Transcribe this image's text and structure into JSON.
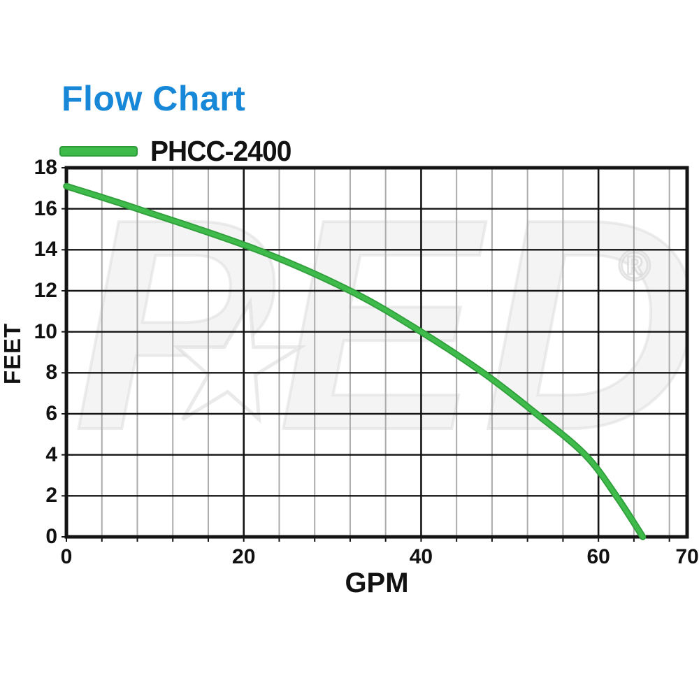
{
  "title": "Flow Chart",
  "colors": {
    "title_blue": "#1787d8",
    "curve_green": "#3fbb4b",
    "curve_green_dark": "#2f9e3a",
    "grid_minor_gray": "#ababab",
    "grid_major_black": "#141414",
    "text_black": "#111111",
    "watermark_gray": "#e2e2e2"
  },
  "legend": {
    "swatch_icon": "green-line-swatch",
    "series_label": "PHCC-2400"
  },
  "watermark": {
    "letters": "PED",
    "star_icon": "star-icon",
    "star_glyph": "★",
    "registered_mark": "®"
  },
  "axes": {
    "x": {
      "label": "GPM",
      "tick_labels": [
        "0",
        "20",
        "40",
        "60",
        "70"
      ],
      "tick_values": [
        0,
        20,
        40,
        60,
        70
      ],
      "minor_step": 4,
      "major_lines": [
        20,
        40,
        60
      ]
    },
    "y": {
      "label": "FEET",
      "tick_labels": [
        "18",
        "16",
        "14",
        "12",
        "10",
        "8",
        "6",
        "4",
        "2",
        "0"
      ],
      "tick_values": [
        18,
        16,
        14,
        12,
        10,
        8,
        6,
        4,
        2,
        0
      ],
      "major_step": 2
    }
  },
  "chart_data": {
    "type": "line",
    "title": "Flow Chart",
    "xlabel": "GPM",
    "ylabel": "FEET",
    "xlim": [
      0,
      70
    ],
    "ylim": [
      0,
      18
    ],
    "grid": "y-major horizontal every 2 ft; x-minor vertical every 4 GPM; x-major vertical at 20/40/60",
    "legend_position": "top-left above plot",
    "series": [
      {
        "name": "PHCC-2400",
        "color": "#3fbb4b",
        "points": [
          [
            0,
            17.1
          ],
          [
            8,
            16
          ],
          [
            21.5,
            14
          ],
          [
            32,
            12
          ],
          [
            40,
            10
          ],
          [
            47,
            8
          ],
          [
            53,
            6
          ],
          [
            58.5,
            4
          ],
          [
            62,
            2
          ],
          [
            65,
            0
          ]
        ]
      }
    ]
  }
}
